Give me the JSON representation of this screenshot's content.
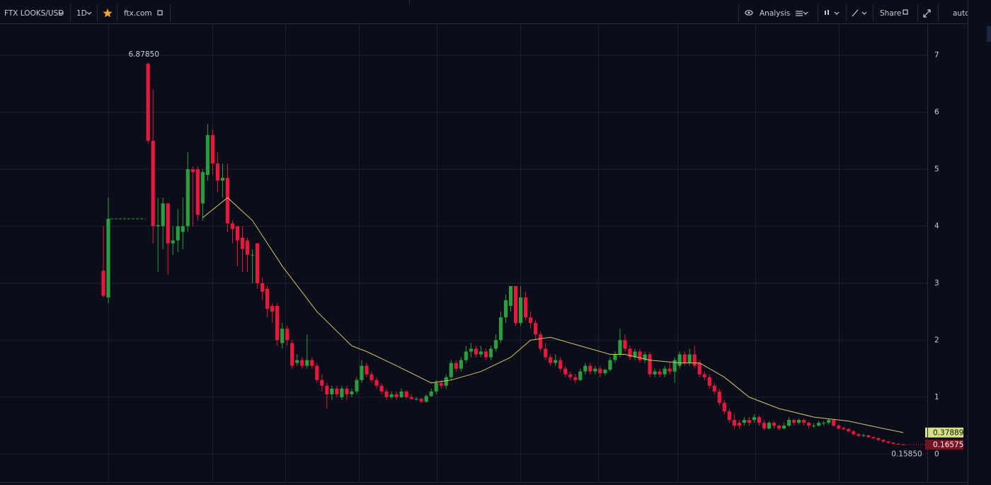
{
  "toolbar": {
    "symbol": "FTX LOOKS/USD",
    "interval": "1D",
    "source": "ftx.com",
    "analysis": "Analysis",
    "share": "Share",
    "scale": "auto"
  },
  "chart_data": {
    "type": "candlestick",
    "up_color": "#2a9d3e",
    "down_color": "#e8173e",
    "ylim": [
      -0.48,
      7.56
    ],
    "yticks": [
      0,
      1,
      2,
      3,
      4,
      5,
      6,
      7
    ],
    "grid": true,
    "high_label": "6.87850",
    "low_label": "0.15850",
    "open": [
      3.22,
      2.75,
      null,
      null,
      null,
      null,
      null,
      null,
      null,
      6.85,
      5.5,
      4.0,
      4.0,
      4.4,
      3.7,
      3.75,
      3.9,
      4.0,
      5.0,
      5.0,
      4.4,
      4.9,
      5.6,
      5.1,
      4.8,
      4.85,
      4.05,
      4.0,
      3.8,
      3.75,
      3.5,
      3.7,
      3.0,
      2.9,
      2.6,
      2.6,
      1.95,
      2.2,
      1.95,
      1.6,
      1.65,
      1.55,
      1.65,
      1.55,
      1.3,
      1.2,
      1.05,
      1.15,
      1.0,
      1.15,
      1.05,
      1.1,
      1.3,
      1.55,
      1.4,
      1.3,
      1.2,
      1.1,
      1.0,
      1.05,
      1.0,
      1.1,
      1.0,
      0.97,
      0.97,
      0.92,
      1.02,
      1.1,
      1.25,
      1.2,
      1.35,
      1.6,
      1.5,
      1.65,
      1.8,
      1.85,
      1.75,
      1.8,
      1.7,
      1.85,
      2.0,
      2.4,
      2.6,
      2.95,
      2.3,
      2.75,
      2.4,
      2.3,
      2.1,
      1.85,
      1.7,
      1.6,
      1.65,
      1.5,
      1.4,
      1.35,
      1.3,
      1.45,
      1.55,
      1.45,
      1.5,
      1.42,
      1.48,
      1.65,
      1.75,
      2.0,
      1.85,
      1.7,
      1.8,
      1.65,
      1.75,
      1.4,
      1.45,
      1.4,
      1.5,
      1.45,
      1.55,
      1.75,
      1.6,
      1.75,
      1.6,
      1.4,
      1.35,
      1.2,
      1.1,
      0.9,
      0.75,
      0.6,
      0.55,
      0.55,
      0.6,
      0.6,
      0.65,
      0.55,
      0.45,
      0.55,
      0.5,
      0.45,
      0.5,
      0.6,
      0.55,
      0.6,
      0.55,
      0.5,
      0.5,
      0.55,
      0.55,
      0.6,
      0.5,
      0.46,
      0.44,
      0.4,
      0.35,
      0.32,
      0.33,
      0.3,
      0.28,
      0.25,
      0.22,
      0.2,
      0.18,
      0.17
    ],
    "high": [
      4.0,
      4.5,
      null,
      null,
      null,
      null,
      null,
      null,
      null,
      6.8785,
      6.4,
      4.5,
      4.5,
      4.4,
      4.0,
      4.3,
      4.5,
      5.3,
      5.05,
      5.05,
      5.0,
      5.8,
      5.7,
      5.3,
      5.1,
      5.1,
      4.1,
      4.0,
      4.0,
      3.8,
      3.6,
      3.7,
      3.1,
      2.95,
      2.65,
      2.65,
      2.3,
      2.25,
      2.0,
      1.75,
      1.7,
      2.1,
      1.7,
      1.6,
      1.4,
      1.25,
      1.2,
      1.2,
      1.2,
      1.2,
      1.15,
      1.35,
      1.65,
      1.6,
      1.45,
      1.35,
      1.25,
      1.15,
      1.1,
      1.1,
      1.15,
      1.12,
      1.05,
      1.0,
      0.99,
      1.05,
      1.15,
      1.3,
      1.3,
      1.4,
      1.65,
      1.65,
      1.7,
      1.9,
      1.95,
      1.9,
      1.9,
      1.85,
      1.9,
      2.1,
      2.5,
      2.8,
      2.95,
      2.95,
      2.95,
      2.85,
      2.5,
      2.35,
      2.15,
      1.95,
      1.75,
      1.75,
      1.7,
      1.55,
      1.45,
      1.4,
      1.5,
      1.6,
      1.6,
      1.55,
      1.55,
      1.5,
      1.7,
      1.8,
      2.2,
      2.1,
      1.9,
      1.85,
      1.85,
      1.8,
      1.8,
      1.5,
      1.5,
      1.55,
      1.6,
      1.7,
      1.8,
      1.8,
      1.85,
      1.9,
      1.65,
      1.45,
      1.4,
      1.25,
      1.15,
      0.95,
      0.8,
      0.7,
      0.6,
      0.65,
      0.65,
      0.7,
      0.68,
      0.6,
      0.58,
      0.58,
      0.52,
      0.55,
      0.65,
      0.62,
      0.62,
      0.62,
      0.57,
      0.54,
      0.58,
      0.58,
      0.62,
      0.62,
      0.52,
      0.48,
      0.46,
      0.42,
      0.37,
      0.36,
      0.34,
      0.31,
      0.29,
      0.26,
      0.23,
      0.21,
      0.19,
      0.18
    ],
    "low": [
      2.75,
      2.65,
      null,
      null,
      null,
      null,
      null,
      null,
      null,
      5.45,
      3.7,
      3.2,
      3.6,
      3.15,
      3.5,
      3.55,
      3.6,
      3.9,
      4.0,
      4.1,
      4.1,
      4.8,
      4.9,
      4.6,
      4.5,
      3.9,
      3.7,
      3.3,
      3.2,
      3.2,
      3.0,
      2.9,
      2.7,
      2.4,
      2.3,
      1.9,
      1.85,
      1.9,
      1.5,
      1.55,
      1.5,
      1.5,
      1.5,
      1.25,
      1.1,
      0.8,
      0.95,
      1.0,
      0.95,
      0.95,
      1.0,
      1.05,
      1.25,
      1.35,
      1.25,
      1.15,
      1.05,
      0.95,
      0.97,
      0.95,
      0.98,
      0.97,
      0.95,
      0.94,
      0.9,
      0.9,
      1.0,
      1.05,
      1.15,
      1.15,
      1.3,
      1.45,
      1.45,
      1.6,
      1.7,
      1.7,
      1.7,
      1.65,
      1.65,
      1.8,
      1.95,
      2.3,
      2.5,
      2.25,
      2.25,
      2.35,
      2.2,
      2.0,
      1.8,
      1.65,
      1.55,
      1.55,
      1.45,
      1.35,
      1.3,
      1.25,
      1.28,
      1.4,
      1.4,
      1.4,
      1.35,
      1.38,
      1.45,
      1.6,
      1.7,
      1.8,
      1.65,
      1.65,
      1.6,
      1.6,
      1.35,
      1.35,
      1.35,
      1.35,
      1.4,
      1.25,
      1.5,
      1.55,
      1.55,
      1.5,
      1.35,
      1.3,
      1.15,
      1.05,
      0.85,
      0.7,
      0.55,
      0.45,
      0.45,
      0.5,
      0.5,
      0.55,
      0.5,
      0.42,
      0.43,
      0.45,
      0.42,
      0.43,
      0.48,
      0.5,
      0.52,
      0.5,
      0.45,
      0.46,
      0.48,
      0.5,
      0.52,
      0.48,
      0.43,
      0.42,
      0.38,
      0.33,
      0.3,
      0.3,
      0.28,
      0.26,
      0.23,
      0.2,
      0.18,
      0.17,
      0.1585,
      0.16
    ],
    "close": [
      2.78,
      4.13,
      null,
      null,
      null,
      null,
      null,
      null,
      null,
      5.5,
      4.0,
      4.02,
      4.4,
      3.7,
      3.75,
      4.0,
      4.0,
      5.0,
      4.95,
      4.2,
      4.95,
      5.6,
      5.1,
      4.8,
      4.85,
      4.05,
      3.95,
      3.75,
      3.6,
      3.5,
      3.5,
      3.0,
      2.85,
      2.55,
      2.5,
      2.0,
      2.2,
      2.0,
      1.55,
      1.65,
      1.55,
      1.65,
      1.55,
      1.3,
      1.2,
      1.05,
      1.15,
      1.05,
      1.15,
      1.05,
      1.1,
      1.3,
      1.55,
      1.4,
      1.3,
      1.2,
      1.1,
      1.0,
      1.05,
      1.0,
      1.1,
      1.0,
      0.97,
      0.97,
      0.92,
      1.02,
      1.1,
      1.25,
      1.2,
      1.35,
      1.6,
      1.5,
      1.65,
      1.8,
      1.85,
      1.75,
      1.8,
      1.7,
      1.85,
      2.0,
      2.4,
      2.7,
      2.95,
      2.3,
      2.75,
      2.4,
      2.3,
      2.1,
      1.85,
      1.7,
      1.6,
      1.65,
      1.5,
      1.4,
      1.35,
      1.3,
      1.45,
      1.55,
      1.45,
      1.5,
      1.42,
      1.48,
      1.65,
      1.75,
      2.0,
      1.85,
      1.7,
      1.8,
      1.65,
      1.75,
      1.4,
      1.45,
      1.4,
      1.5,
      1.45,
      1.65,
      1.75,
      1.6,
      1.75,
      1.55,
      1.4,
      1.35,
      1.2,
      1.1,
      0.9,
      0.75,
      0.6,
      0.5,
      0.5,
      0.6,
      0.55,
      0.65,
      0.55,
      0.45,
      0.55,
      0.5,
      0.45,
      0.5,
      0.6,
      0.55,
      0.6,
      0.55,
      0.5,
      0.5,
      0.55,
      0.55,
      0.6,
      0.5,
      0.45,
      0.44,
      0.4,
      0.35,
      0.32,
      0.33,
      0.3,
      0.28,
      0.25,
      0.22,
      0.2,
      0.18,
      0.17,
      0.16575
    ],
    "ma": {
      "color": "#d2c56c",
      "x": [
        20,
        25,
        30,
        36,
        43,
        50,
        53,
        59,
        66,
        70,
        76,
        82,
        86,
        90,
        96,
        102,
        105,
        110,
        116,
        120,
        125,
        130,
        136,
        143,
        150,
        157,
        161
      ],
      "values": [
        4.15,
        4.5,
        4.1,
        3.3,
        2.5,
        1.9,
        1.8,
        1.55,
        1.25,
        1.3,
        1.45,
        1.7,
        2.0,
        2.05,
        1.9,
        1.75,
        1.75,
        1.65,
        1.6,
        1.6,
        1.35,
        1.0,
        0.8,
        0.65,
        0.58,
        0.45,
        0.37889
      ]
    }
  }
}
